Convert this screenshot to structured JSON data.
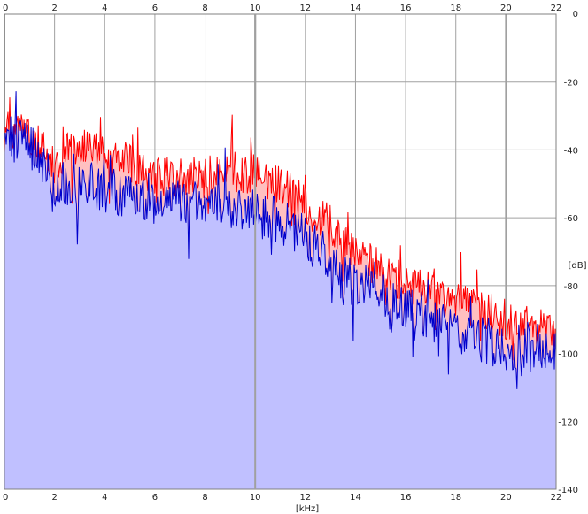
{
  "chart_data": {
    "type": "area",
    "xlabel": "[kHz]",
    "ylabel": "[dB]",
    "xlim": [
      0,
      22
    ],
    "ylim": [
      -140,
      0
    ],
    "x_ticks": [
      0,
      2,
      4,
      6,
      8,
      10,
      12,
      14,
      16,
      18,
      20,
      22
    ],
    "x_tick_labels": [
      "0",
      "2",
      "4",
      "6",
      "8",
      "10",
      "12",
      "14",
      "16",
      "18",
      "20",
      "22"
    ],
    "y_ticks": [
      0,
      -20,
      -40,
      -60,
      -80,
      -100,
      -120,
      -140
    ],
    "y_tick_labels": [
      "0",
      "-20",
      "-40",
      "-60",
      "-80",
      "-100",
      "-120",
      "-140"
    ],
    "grid": true,
    "legend": "none",
    "colors": {
      "background": "#ffffff",
      "grid": "#a0a0a0",
      "frame": "#808080",
      "fill_blue": "#c0c0ff",
      "fill_red": "#ffc0c0",
      "line_red": "#ff0000",
      "line_blue": "#0000cc"
    },
    "series": [
      {
        "color": "#ff0000",
        "x": [
          0,
          0.5,
          1,
          1.5,
          2,
          2.5,
          3,
          3.5,
          4,
          4.5,
          5,
          5.5,
          6,
          6.5,
          7,
          7.5,
          8,
          8.5,
          9,
          9.5,
          10,
          10.5,
          11,
          11.5,
          12,
          12.5,
          13,
          13.5,
          14,
          14.5,
          15,
          15.5,
          16,
          16.5,
          17,
          17.5,
          18,
          18.5,
          19,
          19.5,
          20,
          20.5,
          21,
          21.5,
          22
        ],
        "values": [
          -35,
          -33,
          -36,
          -40,
          -44,
          -41,
          -40,
          -38,
          -41,
          -43,
          -44,
          -46,
          -47,
          -48,
          -48,
          -48,
          -47,
          -48,
          -46,
          -47,
          -47,
          -49,
          -50,
          -53,
          -56,
          -59,
          -62,
          -66,
          -70,
          -73,
          -75,
          -77,
          -80,
          -81,
          -82,
          -84,
          -85,
          -86,
          -87,
          -88,
          -90,
          -91,
          -92,
          -93,
          -93
        ]
      },
      {
        "color": "#0000cc",
        "x": [
          0,
          0.5,
          1,
          1.5,
          2,
          2.5,
          3,
          3.5,
          4,
          4.5,
          5,
          5.5,
          6,
          6.5,
          7,
          7.5,
          8,
          8.5,
          9,
          9.5,
          10,
          10.5,
          11,
          11.5,
          12,
          12.5,
          13,
          13.5,
          14,
          14.5,
          15,
          15.5,
          16,
          16.5,
          17,
          17.5,
          18,
          18.5,
          19,
          19.5,
          20,
          20.5,
          21,
          21.5,
          22
        ],
        "values": [
          -38,
          -36,
          -39,
          -44,
          -50,
          -50,
          -51,
          -50,
          -52,
          -53,
          -54,
          -55,
          -56,
          -55,
          -56,
          -56,
          -56,
          -56,
          -57,
          -58,
          -58,
          -60,
          -61,
          -64,
          -66,
          -69,
          -73,
          -77,
          -80,
          -81,
          -82,
          -84,
          -86,
          -88,
          -90,
          -92,
          -94,
          -95,
          -96,
          -97,
          -98,
          -98,
          -99,
          -100,
          -100
        ]
      }
    ]
  }
}
